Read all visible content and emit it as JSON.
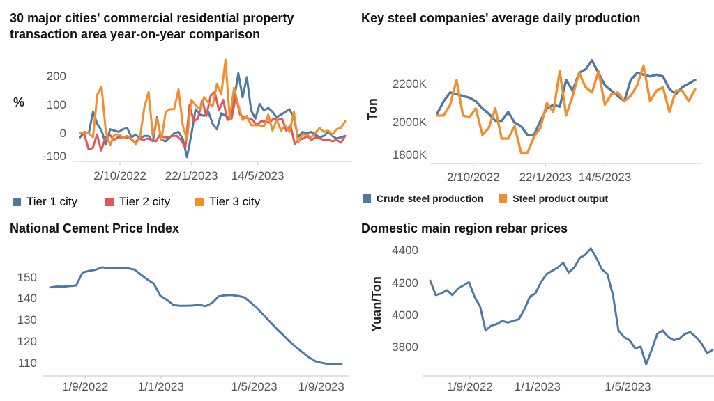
{
  "colors": {
    "blue": "#4E79A7",
    "red": "#E15759",
    "orange": "#F28E2B",
    "axis": "#D9D9D9",
    "tick": "#555555"
  },
  "chart_data": [
    {
      "type": "line",
      "title": "30 major cities' commercial residential property transaction area year-on-year comparison",
      "title_lines": [
        "30 major cities' commercial residential property",
        "transaction area year-on-year comparison"
      ],
      "ylabel": "%",
      "xlabel": "",
      "x_ticks": [
        "2/10/2022",
        "22/1/2023",
        "14/5/2023"
      ],
      "y_ticks": [
        "200",
        "100",
        "0",
        "-100"
      ],
      "ylim": [
        -110,
        270
      ],
      "grid": false,
      "legend_position": "bottom",
      "series": [
        {
          "name": "Tier 1 city",
          "color": "#4E79A7",
          "values": [
            -30,
            -10,
            -15,
            65,
            20,
            -5,
            -55,
            0,
            -5,
            -10,
            0,
            5,
            -30,
            -20,
            -35,
            -25,
            -25,
            -45,
            45,
            -40,
            -45,
            -30,
            -15,
            -10,
            -35,
            -105,
            -20,
            75,
            55,
            50,
            65,
            20,
            0,
            60,
            50,
            40,
            110,
            210,
            120,
            195,
            70,
            40,
            95,
            70,
            80,
            65,
            45,
            55,
            65,
            75,
            40,
            -30,
            -10,
            -15,
            -10,
            -20,
            -30,
            -25,
            -10,
            -25,
            -35,
            -30,
            -25
          ]
        },
        {
          "name": "Tier 2 city",
          "color": "#E15759",
          "values": [
            -15,
            -20,
            -75,
            -70,
            -20,
            -80,
            -30,
            -20,
            -40,
            -30,
            -30,
            -30,
            -35,
            -50,
            -35,
            -40,
            -35,
            -40,
            -45,
            -20,
            -30,
            -30,
            -25,
            -25,
            -40,
            -70,
            90,
            30,
            40,
            110,
            50,
            125,
            140,
            70,
            110,
            35,
            40,
            125,
            55,
            45,
            40,
            35,
            15,
            30,
            30,
            25,
            40,
            35,
            40,
            -5,
            15,
            -55,
            -40,
            -35,
            -25,
            -40,
            -30,
            -35,
            -40,
            -40,
            -45,
            -40,
            -50,
            -25
          ]
        },
        {
          "name": "Tier 3 city",
          "color": "#F28E2B",
          "values": [
            -15,
            -15,
            -15,
            -30,
            130,
            160,
            -10,
            -60,
            -20,
            -20,
            -30,
            -25,
            -35,
            -55,
            -30,
            80,
            140,
            -25,
            40,
            -40,
            65,
            75,
            75,
            150,
            15,
            -40,
            110,
            90,
            75,
            120,
            100,
            85,
            170,
            130,
            260,
            40,
            155,
            90,
            35,
            50,
            15,
            15,
            15,
            10,
            55,
            -5,
            35,
            -5,
            15,
            -10,
            65,
            -50,
            -20,
            -20,
            -30,
            -15,
            5,
            -10,
            -5,
            -20,
            0,
            5,
            30
          ]
        }
      ]
    },
    {
      "type": "line",
      "title": "Key steel companies' average daily production",
      "ylabel": "Ton",
      "xlabel": "",
      "x_ticks": [
        "2/10/2022",
        "22/1/2023",
        "14/5/2023"
      ],
      "y_ticks": [
        "2200K",
        "2000K",
        "1800K"
      ],
      "ylim": [
        1780,
        2350
      ],
      "grid": false,
      "legend_position": "bottom",
      "series": [
        {
          "name": "Crude steel production",
          "color": "#4E79A7",
          "values": [
            2030,
            2100,
            2150,
            2140,
            2130,
            2120,
            2100,
            2060,
            2030,
            1990,
            1990,
            2040,
            1980,
            1960,
            1910,
            1910,
            1990,
            2060,
            2080,
            2070,
            2220,
            2160,
            2260,
            2280,
            2330,
            2260,
            2190,
            2160,
            2130,
            2100,
            2220,
            2260,
            2250,
            2240,
            2250,
            2240,
            2170,
            2140,
            2180,
            2200,
            2220
          ]
        },
        {
          "name": "Steel product output",
          "color": "#F28E2B",
          "values": [
            2020,
            2020,
            2080,
            2220,
            2020,
            2010,
            2060,
            1910,
            1950,
            2060,
            1890,
            1890,
            1960,
            1810,
            1810,
            1900,
            1950,
            2090,
            2040,
            2270,
            2020,
            2130,
            2260,
            2180,
            2150,
            2270,
            2080,
            2140,
            2150,
            2100,
            2130,
            2190,
            2300,
            2100,
            2160,
            2180,
            2040,
            2160,
            2160,
            2100,
            2170
          ]
        }
      ]
    },
    {
      "type": "line",
      "title": "National Cement Price Index",
      "ylabel": "",
      "xlabel": "",
      "x_ticks": [
        "1/9/2022",
        "1/1/2023",
        "1/5/2023",
        "1/9/2023"
      ],
      "y_ticks": [
        "150",
        "140",
        "130",
        "120",
        "110"
      ],
      "ylim": [
        106,
        158
      ],
      "grid": false,
      "series": [
        {
          "name": "",
          "color": "#4E79A7",
          "values": [
            145.2,
            145.6,
            145.5,
            145.8,
            146.1,
            152.1,
            152.9,
            153.4,
            154.6,
            154.2,
            154.4,
            154.3,
            154.1,
            153.5,
            151.2,
            148.9,
            146.9,
            141.3,
            139.4,
            137.0,
            136.6,
            136.6,
            136.7,
            137.0,
            136.4,
            137.9,
            141.0,
            141.5,
            141.6,
            141.2,
            140.5,
            138.0,
            135.3,
            132.1,
            128.9,
            125.7,
            122.8,
            119.8,
            117.2,
            114.7,
            112.4,
            110.6,
            109.9,
            109.3,
            109.4,
            109.5
          ]
        }
      ]
    },
    {
      "type": "line",
      "title": "Domestic main region rebar prices",
      "ylabel": "Yuan/Ton",
      "xlabel": "",
      "x_ticks": [
        "1/9/2022",
        "1/1/2023",
        "1/5/2023"
      ],
      "y_ticks": [
        "4400",
        "4200",
        "4000",
        "3800"
      ],
      "ylim": [
        3650,
        4440
      ],
      "grid": false,
      "series": [
        {
          "name": "",
          "color": "#4E79A7",
          "values": [
            4210,
            4120,
            4130,
            4150,
            4120,
            4160,
            4180,
            4200,
            4110,
            4050,
            3900,
            3930,
            3940,
            3960,
            3950,
            3960,
            3970,
            4030,
            4110,
            4130,
            4200,
            4250,
            4270,
            4290,
            4320,
            4260,
            4290,
            4350,
            4370,
            4410,
            4350,
            4280,
            4250,
            4120,
            3900,
            3860,
            3840,
            3790,
            3800,
            3690,
            3780,
            3880,
            3900,
            3860,
            3840,
            3850,
            3880,
            3890,
            3860,
            3820,
            3760,
            3780
          ]
        }
      ]
    }
  ]
}
